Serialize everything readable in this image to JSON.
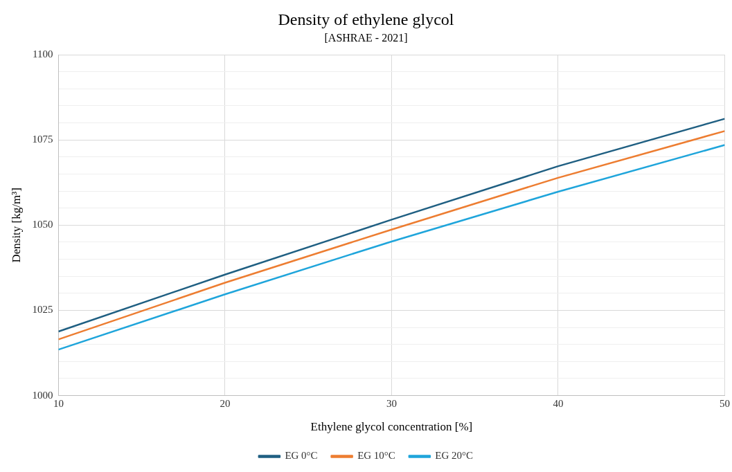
{
  "chart_data": {
    "type": "line",
    "title": "Density of ethylene glycol",
    "subtitle": "[ASHRAE - 2021]",
    "xlabel": "Ethylene glycol concentration [%]",
    "ylabel": "Density [kg/m³]",
    "x": [
      10,
      20,
      30,
      40,
      50
    ],
    "series": [
      {
        "name": "EG 0°C",
        "color": "#1f5f82",
        "values": [
          1018.8,
          1035.5,
          1051.6,
          1067.3,
          1081.2
        ]
      },
      {
        "name": "EG 10°C",
        "color": "#ed7d31",
        "values": [
          1016.5,
          1033.1,
          1048.7,
          1063.9,
          1077.6
        ]
      },
      {
        "name": "EG 20°C",
        "color": "#1fa5db",
        "values": [
          1013.5,
          1029.7,
          1045.2,
          1059.8,
          1073.5
        ]
      }
    ],
    "xlim": [
      10,
      50
    ],
    "xticks": [
      10,
      20,
      30,
      40,
      50
    ],
    "ylim": [
      1000,
      1100
    ],
    "yticks": [
      1000,
      {
        "value": 1005,
        "label": null
      },
      {
        "value": 1010,
        "label": null
      },
      {
        "value": 1015,
        "label": null
      },
      {
        "value": 1020,
        "label": null
      },
      1025,
      {
        "value": 1030,
        "label": null
      },
      {
        "value": 1035,
        "label": null
      },
      {
        "value": 1040,
        "label": null
      },
      {
        "value": 1045,
        "label": null
      },
      1050,
      {
        "value": 1055,
        "label": null
      },
      {
        "value": 1060,
        "label": null
      },
      {
        "value": 1065,
        "label": null
      },
      {
        "value": 1070,
        "label": null
      },
      1075,
      {
        "value": 1080,
        "label": null
      },
      {
        "value": 1085,
        "label": null
      },
      {
        "value": 1090,
        "label": null
      },
      {
        "value": 1095,
        "label": null
      },
      1100
    ],
    "grid": true,
    "legend": "bottom",
    "marker": "none",
    "line_style": "solid"
  }
}
